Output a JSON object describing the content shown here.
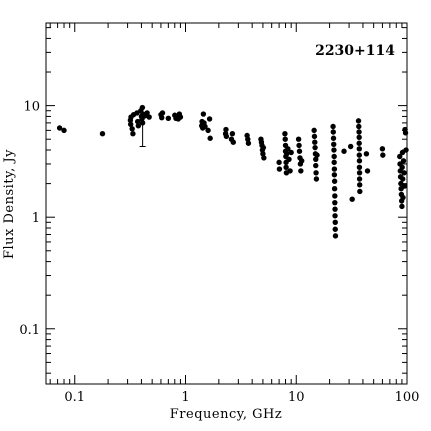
{
  "chart_data": {
    "type": "scatter",
    "title": "",
    "annotation": "2230+114",
    "xlabel": "Frequency, GHz",
    "ylabel": "Flux Density, Jy",
    "xscale": "log",
    "yscale": "log",
    "xlim": [
      0.055,
      100
    ],
    "ylim": [
      0.032,
      55
    ],
    "grid": false,
    "legend": "none",
    "marker_color": "#000000",
    "x_ticks": [
      {
        "value": 0.1,
        "label": "0.1"
      },
      {
        "value": 1,
        "label": "1"
      },
      {
        "value": 10,
        "label": "10"
      },
      {
        "value": 100,
        "label": "100"
      }
    ],
    "y_ticks": [
      {
        "value": 0.1,
        "label": "0.1"
      },
      {
        "value": 1,
        "label": "1"
      },
      {
        "value": 10,
        "label": "10"
      }
    ],
    "error_bars": [
      {
        "x": 0.41,
        "y": 7.0,
        "low": 4.3,
        "high": 9.3
      }
    ],
    "points": [
      {
        "x": 0.073,
        "y": 6.3
      },
      {
        "x": 0.08,
        "y": 6.0
      },
      {
        "x": 0.178,
        "y": 5.6
      },
      {
        "x": 0.318,
        "y": 7.4
      },
      {
        "x": 0.32,
        "y": 6.8
      },
      {
        "x": 0.322,
        "y": 7.9
      },
      {
        "x": 0.33,
        "y": 6.2
      },
      {
        "x": 0.335,
        "y": 5.6
      },
      {
        "x": 0.34,
        "y": 8.3
      },
      {
        "x": 0.365,
        "y": 8.6
      },
      {
        "x": 0.37,
        "y": 7.2
      },
      {
        "x": 0.375,
        "y": 6.6
      },
      {
        "x": 0.395,
        "y": 9.0
      },
      {
        "x": 0.4,
        "y": 8.0
      },
      {
        "x": 0.405,
        "y": 7.6
      },
      {
        "x": 0.408,
        "y": 9.6
      },
      {
        "x": 0.41,
        "y": 7.0
      },
      {
        "x": 0.412,
        "y": 8.4
      },
      {
        "x": 0.43,
        "y": 8.1
      },
      {
        "x": 0.45,
        "y": 8.6
      },
      {
        "x": 0.47,
        "y": 7.9
      },
      {
        "x": 0.6,
        "y": 8.3
      },
      {
        "x": 0.61,
        "y": 7.8
      },
      {
        "x": 0.62,
        "y": 8.6
      },
      {
        "x": 0.7,
        "y": 7.7
      },
      {
        "x": 0.8,
        "y": 8.2
      },
      {
        "x": 0.82,
        "y": 7.7
      },
      {
        "x": 0.84,
        "y": 8.0
      },
      {
        "x": 0.86,
        "y": 7.6
      },
      {
        "x": 0.88,
        "y": 8.4
      },
      {
        "x": 0.9,
        "y": 7.9
      },
      {
        "x": 1.4,
        "y": 6.6
      },
      {
        "x": 1.41,
        "y": 7.2
      },
      {
        "x": 1.43,
        "y": 6.3
      },
      {
        "x": 1.45,
        "y": 8.4
      },
      {
        "x": 1.47,
        "y": 7.0
      },
      {
        "x": 1.5,
        "y": 6.5
      },
      {
        "x": 1.6,
        "y": 6.0
      },
      {
        "x": 1.65,
        "y": 7.6
      },
      {
        "x": 1.67,
        "y": 5.1
      },
      {
        "x": 2.3,
        "y": 5.6
      },
      {
        "x": 2.32,
        "y": 6.1
      },
      {
        "x": 2.34,
        "y": 5.3
      },
      {
        "x": 2.6,
        "y": 5.0
      },
      {
        "x": 2.65,
        "y": 5.6
      },
      {
        "x": 2.7,
        "y": 4.7
      },
      {
        "x": 3.6,
        "y": 5.4
      },
      {
        "x": 3.65,
        "y": 5.0
      },
      {
        "x": 3.7,
        "y": 4.6
      },
      {
        "x": 4.8,
        "y": 5.0
      },
      {
        "x": 4.85,
        "y": 4.7
      },
      {
        "x": 4.9,
        "y": 4.4
      },
      {
        "x": 4.95,
        "y": 4.0
      },
      {
        "x": 5.0,
        "y": 3.7
      },
      {
        "x": 5.05,
        "y": 4.2
      },
      {
        "x": 5.1,
        "y": 3.4
      },
      {
        "x": 7.0,
        "y": 3.1
      },
      {
        "x": 7.05,
        "y": 2.7
      },
      {
        "x": 7.9,
        "y": 5.6
      },
      {
        "x": 7.95,
        "y": 5.0
      },
      {
        "x": 8.0,
        "y": 4.4
      },
      {
        "x": 8.0,
        "y": 3.9
      },
      {
        "x": 8.05,
        "y": 3.5
      },
      {
        "x": 8.1,
        "y": 3.1
      },
      {
        "x": 8.1,
        "y": 2.8
      },
      {
        "x": 8.15,
        "y": 2.5
      },
      {
        "x": 8.2,
        "y": 3.7
      },
      {
        "x": 8.4,
        "y": 4.1
      },
      {
        "x": 8.6,
        "y": 3.3
      },
      {
        "x": 8.8,
        "y": 2.6
      },
      {
        "x": 9.0,
        "y": 3.8
      },
      {
        "x": 10.5,
        "y": 5.0
      },
      {
        "x": 10.6,
        "y": 4.4
      },
      {
        "x": 10.7,
        "y": 3.9
      },
      {
        "x": 10.8,
        "y": 3.4
      },
      {
        "x": 10.9,
        "y": 3.0
      },
      {
        "x": 11.0,
        "y": 2.6
      },
      {
        "x": 11.2,
        "y": 3.2
      },
      {
        "x": 14.5,
        "y": 6.0
      },
      {
        "x": 14.6,
        "y": 5.3
      },
      {
        "x": 14.7,
        "y": 4.7
      },
      {
        "x": 14.8,
        "y": 4.2
      },
      {
        "x": 14.9,
        "y": 3.7
      },
      {
        "x": 15.0,
        "y": 3.3
      },
      {
        "x": 15.0,
        "y": 2.9
      },
      {
        "x": 15.1,
        "y": 2.5
      },
      {
        "x": 15.2,
        "y": 2.2
      },
      {
        "x": 15.4,
        "y": 3.6
      },
      {
        "x": 21.5,
        "y": 6.5
      },
      {
        "x": 21.6,
        "y": 5.8
      },
      {
        "x": 21.7,
        "y": 5.1
      },
      {
        "x": 21.8,
        "y": 4.5
      },
      {
        "x": 21.9,
        "y": 4.0
      },
      {
        "x": 22.0,
        "y": 3.5
      },
      {
        "x": 22.0,
        "y": 3.1
      },
      {
        "x": 22.1,
        "y": 2.7
      },
      {
        "x": 22.1,
        "y": 2.4
      },
      {
        "x": 22.2,
        "y": 2.1
      },
      {
        "x": 22.2,
        "y": 1.8
      },
      {
        "x": 22.3,
        "y": 1.55
      },
      {
        "x": 22.3,
        "y": 1.35
      },
      {
        "x": 22.4,
        "y": 1.18
      },
      {
        "x": 22.4,
        "y": 1.03
      },
      {
        "x": 22.5,
        "y": 0.9
      },
      {
        "x": 22.5,
        "y": 0.78
      },
      {
        "x": 22.6,
        "y": 0.68
      },
      {
        "x": 27.0,
        "y": 3.9
      },
      {
        "x": 31.0,
        "y": 4.3
      },
      {
        "x": 32.0,
        "y": 1.45
      },
      {
        "x": 36.5,
        "y": 7.3
      },
      {
        "x": 36.7,
        "y": 6.5
      },
      {
        "x": 36.9,
        "y": 5.8
      },
      {
        "x": 37.0,
        "y": 5.2
      },
      {
        "x": 37.0,
        "y": 4.6
      },
      {
        "x": 37.1,
        "y": 4.1
      },
      {
        "x": 37.1,
        "y": 3.6
      },
      {
        "x": 37.2,
        "y": 3.2
      },
      {
        "x": 37.2,
        "y": 2.8
      },
      {
        "x": 37.3,
        "y": 2.5
      },
      {
        "x": 37.3,
        "y": 2.2
      },
      {
        "x": 37.4,
        "y": 1.95
      },
      {
        "x": 37.5,
        "y": 1.7
      },
      {
        "x": 43.0,
        "y": 3.7
      },
      {
        "x": 44.0,
        "y": 2.6
      },
      {
        "x": 60.0,
        "y": 4.1
      },
      {
        "x": 60.5,
        "y": 3.6
      },
      {
        "x": 86.0,
        "y": 3.5
      },
      {
        "x": 86.5,
        "y": 3.0
      },
      {
        "x": 87.0,
        "y": 2.6
      },
      {
        "x": 87.5,
        "y": 2.3
      },
      {
        "x": 88.0,
        "y": 2.0
      },
      {
        "x": 88.5,
        "y": 1.8
      },
      {
        "x": 89.0,
        "y": 1.6
      },
      {
        "x": 89.5,
        "y": 1.4
      },
      {
        "x": 90.0,
        "y": 1.25
      },
      {
        "x": 90.5,
        "y": 2.8
      },
      {
        "x": 91.0,
        "y": 3.8
      },
      {
        "x": 91.5,
        "y": 2.2
      },
      {
        "x": 92.0,
        "y": 1.5
      },
      {
        "x": 93.0,
        "y": 3.2
      },
      {
        "x": 94.0,
        "y": 2.5
      },
      {
        "x": 95.0,
        "y": 1.9
      },
      {
        "x": 96.0,
        "y": 6.1
      },
      {
        "x": 97.0,
        "y": 5.7
      },
      {
        "x": 98.0,
        "y": 4.0
      }
    ]
  }
}
